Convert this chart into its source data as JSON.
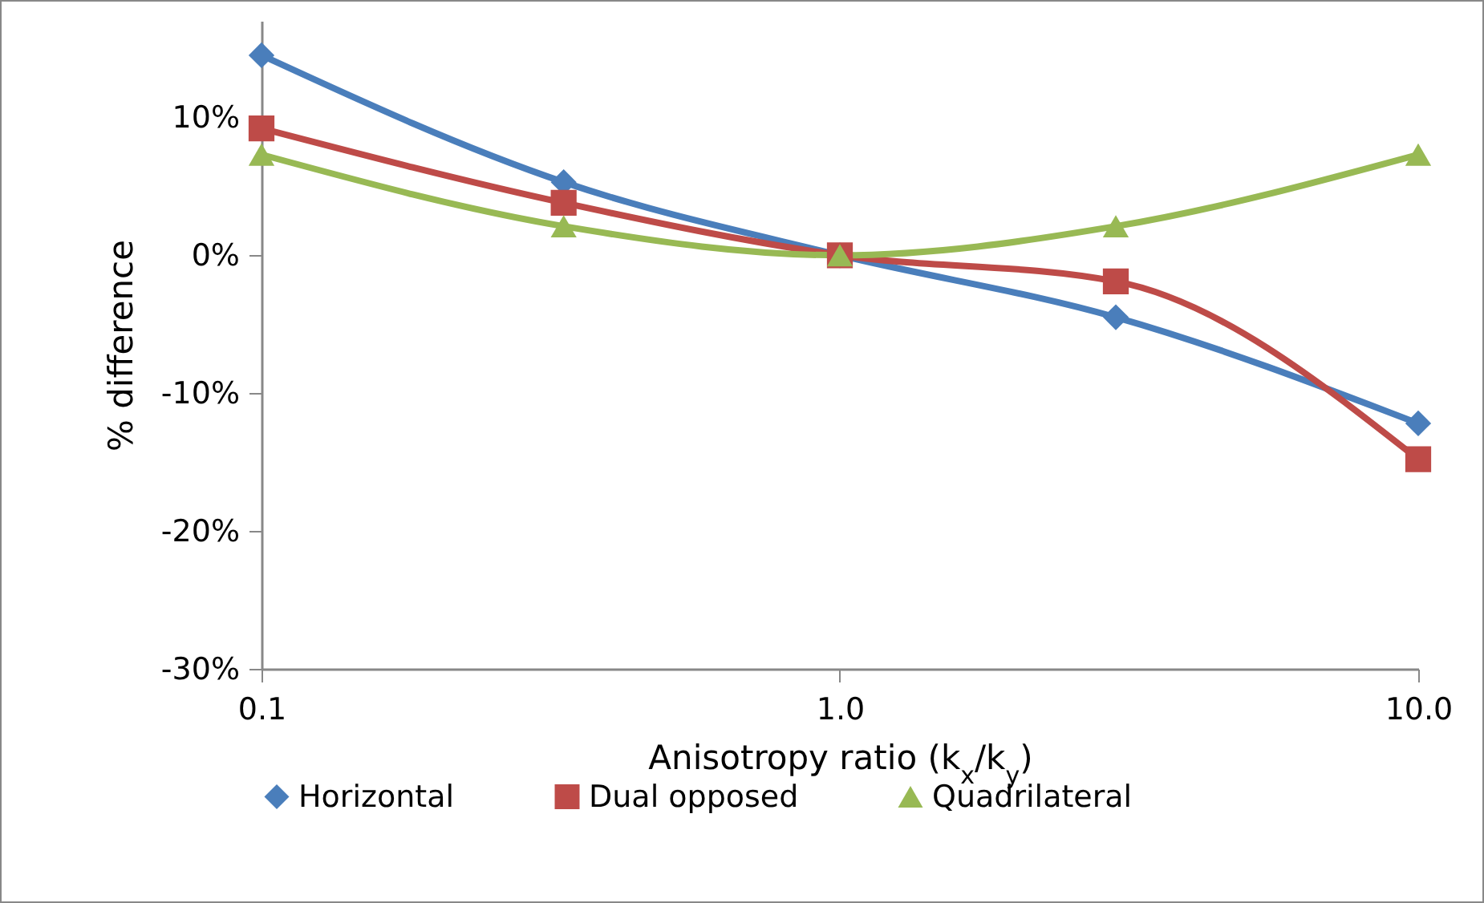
{
  "chart_data": {
    "type": "line",
    "xlabel": "Anisotropy ratio (k$_{x}$/k$_{y}$)",
    "ylabel": "% difference",
    "x": [
      0.1,
      0.333,
      1,
      3,
      10
    ],
    "series": [
      {
        "name": "Horizontal",
        "color": "#4a7ebb",
        "marker": "diamond",
        "values": [
          14.5,
          5.3,
          0,
          -4.5,
          -12.2
        ]
      },
      {
        "name": "Dual opposed",
        "color": "#be4b48",
        "marker": "square",
        "values": [
          9.2,
          3.8,
          0,
          -1.9,
          -14.8
        ]
      },
      {
        "name": "Quadrilateral",
        "color": "#98b954",
        "marker": "triangle",
        "values": [
          7.3,
          2.1,
          0,
          2.1,
          7.3
        ]
      }
    ],
    "log": "x",
    "xlim": [
      0.1,
      10
    ],
    "xticks": [
      {
        "value": 0.1,
        "label": "0.1"
      },
      {
        "value": 1,
        "label": "1.0"
      },
      {
        "value": 10,
        "label": "10.0"
      }
    ],
    "ylim": [
      -30,
      17
    ],
    "yticks": [
      {
        "value": -30,
        "label": "-30%"
      },
      {
        "value": -20,
        "label": "-20%"
      },
      {
        "value": -10,
        "label": "-10%"
      },
      {
        "value": 0,
        "label": "0%"
      },
      {
        "value": 10,
        "label": "10%"
      }
    ],
    "grid": false,
    "legend": "bottom",
    "line_style": "solid"
  }
}
